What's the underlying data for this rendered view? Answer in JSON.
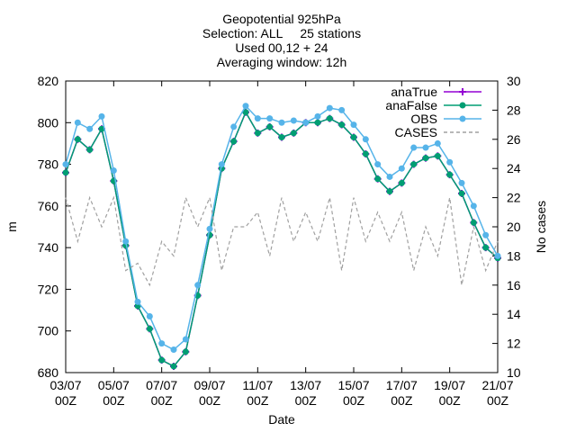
{
  "chart_data": {
    "type": "line",
    "title": [
      "Geopotential 925hPa",
      "Selection: ALL     25 stations",
      "Used 00,12 + 24",
      "Averaging window: 12h"
    ],
    "x_label": "Date",
    "y_label": "m",
    "y2_label": "No cases",
    "categories": [
      "03/07 00Z",
      null,
      null,
      null,
      "05/07 00Z",
      null,
      null,
      null,
      "07/07 00Z",
      null,
      null,
      null,
      "09/07 00Z",
      null,
      null,
      null,
      "11/07 00Z",
      null,
      null,
      null,
      "13/07 00Z",
      null,
      null,
      null,
      "15/07 00Z",
      null,
      null,
      null,
      "17/07 00Z",
      null,
      null,
      null,
      "19/07 00Z",
      null,
      null,
      null,
      "21/07 00Z"
    ],
    "ylim": [
      680,
      820
    ],
    "yticks": [
      680,
      700,
      720,
      740,
      760,
      780,
      800,
      820
    ],
    "y2lim": [
      10,
      30
    ],
    "y2ticks": [
      10,
      12,
      14,
      16,
      18,
      20,
      22,
      24,
      26,
      28,
      30
    ],
    "legend": "top-right",
    "series": [
      {
        "name": "anaTrue",
        "color": "#9400d3",
        "marker": "plus",
        "values": [
          776,
          792,
          787,
          797,
          772,
          741,
          712,
          701,
          686,
          683,
          690,
          717,
          746,
          778,
          791,
          805,
          795,
          798,
          793,
          795,
          800,
          800,
          802,
          799,
          793,
          785,
          773,
          767,
          771,
          780,
          783,
          784,
          775,
          766,
          752,
          740,
          735
        ]
      },
      {
        "name": "anaFalse",
        "color": "#009e73",
        "marker": "circle",
        "values": [
          776,
          792,
          787,
          797,
          772,
          741,
          712,
          701,
          686,
          683,
          690,
          717,
          746,
          778,
          791,
          805,
          795,
          798,
          793,
          795,
          800,
          800,
          802,
          799,
          793,
          785,
          773,
          767,
          771,
          780,
          783,
          784,
          775,
          766,
          752,
          740,
          735
        ]
      },
      {
        "name": "OBS",
        "color": "#56b4e9",
        "marker": "circle",
        "values": [
          780,
          800,
          797,
          803,
          777,
          743,
          714,
          707,
          694,
          691,
          696,
          722,
          749,
          780,
          798,
          808,
          802,
          802,
          800,
          801,
          800,
          803,
          807,
          806,
          799,
          792,
          780,
          774,
          778,
          788,
          788,
          790,
          781,
          771,
          760,
          746,
          736
        ]
      },
      {
        "name": "CASES",
        "color": "#a0a0a0",
        "dashed": true,
        "axis": "y2",
        "values": [
          22,
          19,
          22,
          20,
          22,
          17,
          17.5,
          16,
          19,
          18,
          22,
          20,
          22,
          17,
          20,
          20,
          21,
          18,
          22,
          19,
          21,
          19,
          22,
          17,
          22,
          19,
          21,
          19,
          21,
          17,
          20,
          18,
          22,
          16,
          20,
          17,
          19
        ]
      }
    ]
  }
}
